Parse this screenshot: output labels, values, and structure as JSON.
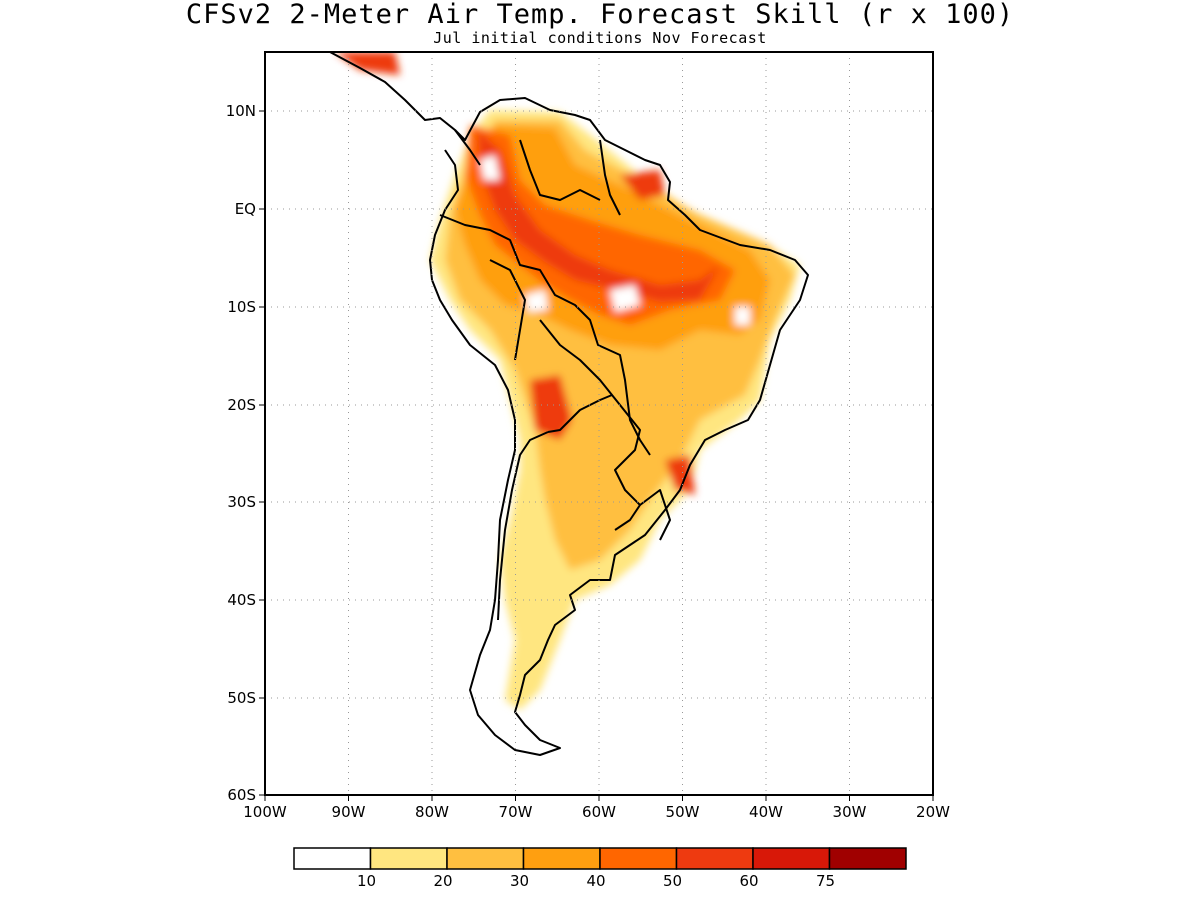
{
  "title": "CFSv2 2-Meter Air Temp. Forecast Skill (r x 100)",
  "subtitle": "Jul initial conditions  Nov Forecast",
  "map": {
    "x_ticks": [
      "100W",
      "90W",
      "80W",
      "70W",
      "60W",
      "50W",
      "40W",
      "30W",
      "20W"
    ],
    "y_ticks": [
      "10N",
      "EQ",
      "10S",
      "20S",
      "30S",
      "40S",
      "50S",
      "60S"
    ],
    "grid": true
  },
  "legend": {
    "colors": [
      "#ffffff",
      "#ffe680",
      "#ffbf40",
      "#ff9f10",
      "#ff6600",
      "#ee3a10",
      "#d81808",
      "#a00000"
    ],
    "labels": [
      "10",
      "20",
      "30",
      "40",
      "50",
      "60",
      "75"
    ]
  }
}
